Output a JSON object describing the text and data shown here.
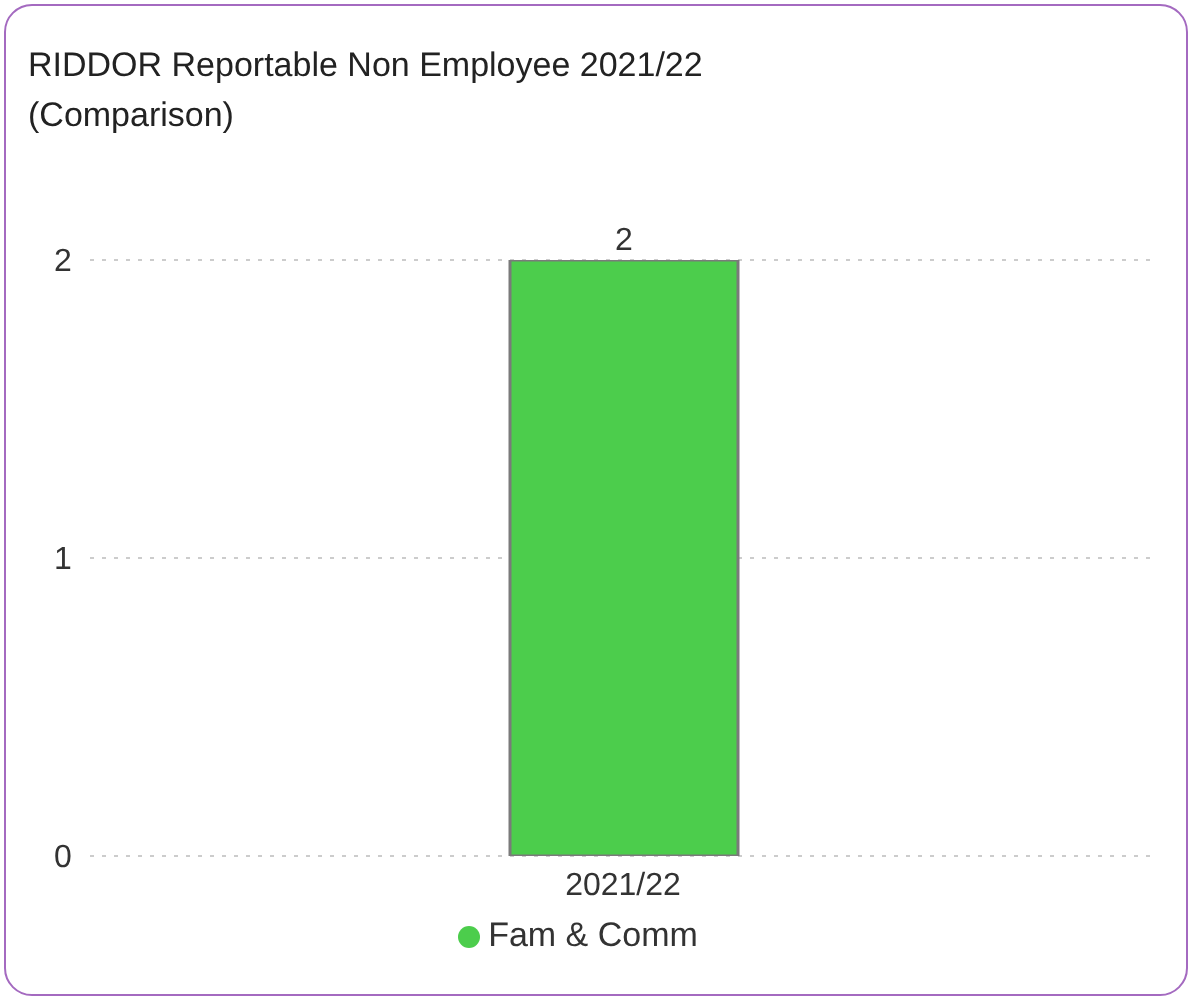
{
  "chart_data": {
    "type": "bar",
    "title": "RIDDOR Reportable Non Employee 2021/22 (Comparison)",
    "categories": [
      "2021/22"
    ],
    "series": [
      {
        "name": "Fam & Comm",
        "color": "#4ccd4c",
        "values": [
          2
        ]
      }
    ],
    "ylim": [
      0,
      2
    ],
    "yticks": [
      0,
      1,
      2
    ],
    "grid": "y",
    "legend": "bottom",
    "data_labels": true
  }
}
